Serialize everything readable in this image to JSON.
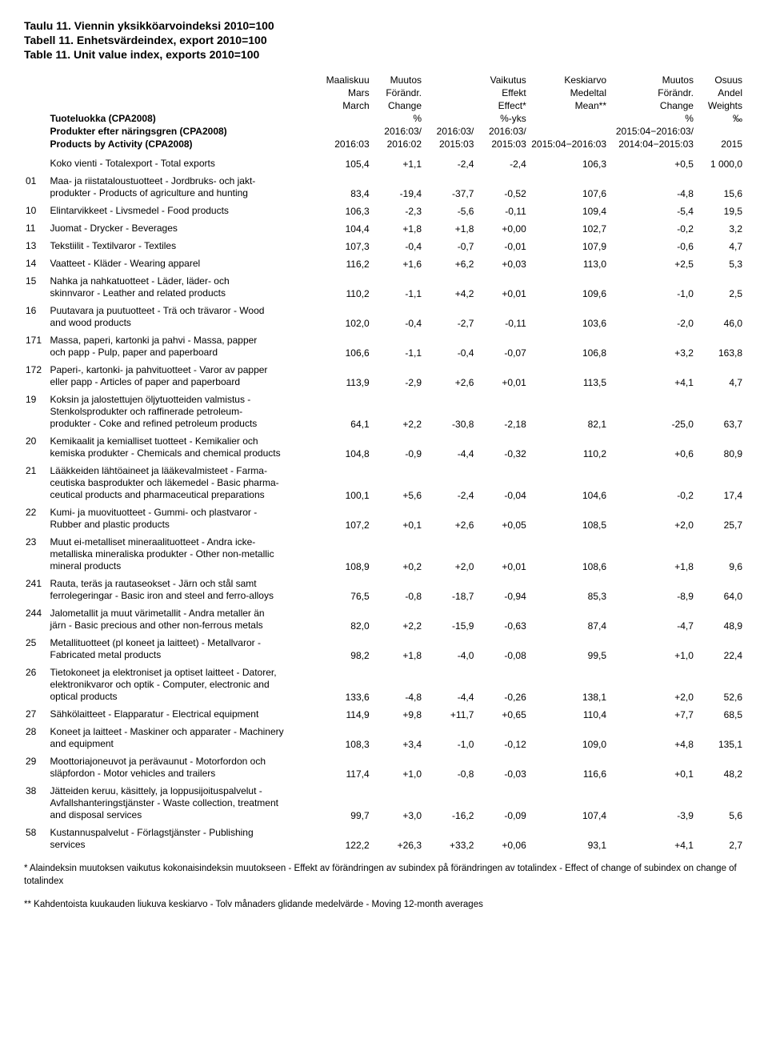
{
  "titles": {
    "fi": "Taulu 11. Viennin yksikköarvoindeksi 2010=100",
    "sv": "Tabell 11. Enhetsvärdeindex, export 2010=100",
    "en": "Table 11. Unit value index, exports 2010=100"
  },
  "header": {
    "row1": [
      "",
      "",
      "Maaliskuu",
      "Muutos",
      "",
      "Vaikutus",
      "Keskiarvo",
      "Muutos",
      "Osuus"
    ],
    "row2": [
      "",
      "",
      "Mars",
      "Förändr.",
      "",
      "Effekt",
      "Medeltal",
      "Förändr.",
      "Andel"
    ],
    "row3": [
      "",
      "",
      "March",
      "Change",
      "",
      "Effect*",
      "Mean**",
      "Change",
      "Weights"
    ],
    "row4": [
      "",
      "Tuoteluokka (CPA2008)",
      "",
      "%",
      "",
      "%-yks",
      "",
      "%",
      "‰"
    ],
    "row5": [
      "",
      "Produkter efter näringsgren (CPA2008)",
      "",
      "2016:03/",
      "2016:03/",
      "2016:03/",
      "",
      "2015:04−2016:03/",
      ""
    ],
    "row6": [
      "",
      "Products by Activity (CPA2008)",
      "2016:03",
      "2016:02",
      "2015:03",
      "2015:03",
      "2015:04−2016:03",
      "2014:04−2015:03",
      "2015"
    ]
  },
  "rows": [
    {
      "code": "",
      "desc": [
        "Koko vienti - Totalexport - Total exports"
      ],
      "v": [
        "105,4",
        "+1,1",
        "-2,4",
        "-2,4",
        "106,3",
        "+0,5",
        "1 000,0"
      ]
    },
    {
      "code": "01",
      "desc": [
        "Maa- ja riistataloustuotteet - Jordbruks- och jakt-",
        "produkter - Products of agriculture and hunting"
      ],
      "v": [
        "83,4",
        "-19,4",
        "-37,7",
        "-0,52",
        "107,6",
        "-4,8",
        "15,6"
      ]
    },
    {
      "code": "10",
      "desc": [
        "Elintarvikkeet - Livsmedel - Food products"
      ],
      "v": [
        "106,3",
        "-2,3",
        "-5,6",
        "-0,11",
        "109,4",
        "-5,4",
        "19,5"
      ]
    },
    {
      "code": "11",
      "desc": [
        "Juomat - Drycker - Beverages"
      ],
      "v": [
        "104,4",
        "+1,8",
        "+1,8",
        "+0,00",
        "102,7",
        "-0,2",
        "3,2"
      ]
    },
    {
      "code": "13",
      "desc": [
        "Tekstiilit  - Textilvaror - Textiles"
      ],
      "v": [
        "107,3",
        "-0,4",
        "-0,7",
        "-0,01",
        "107,9",
        "-0,6",
        "4,7"
      ]
    },
    {
      "code": "14",
      "desc": [
        "Vaatteet - Kläder - Wearing apparel"
      ],
      "v": [
        "116,2",
        "+1,6",
        "+6,2",
        "+0,03",
        "113,0",
        "+2,5",
        "5,3"
      ]
    },
    {
      "code": "15",
      "desc": [
        "Nahka ja nahkatuotteet - Läder, läder- och",
        "skinnvaror - Leather and related products"
      ],
      "v": [
        "110,2",
        "-1,1",
        "+4,2",
        "+0,01",
        "109,6",
        "-1,0",
        "2,5"
      ]
    },
    {
      "code": "16",
      "desc": [
        "Puutavara ja puutuotteet - Trä och trävaror - Wood",
        "and wood products"
      ],
      "v": [
        "102,0",
        "-0,4",
        "-2,7",
        "-0,11",
        "103,6",
        "-2,0",
        "46,0"
      ]
    },
    {
      "code": "171",
      "desc": [
        "Massa, paperi, kartonki ja pahvi - Massa, papper",
        "och papp -  Pulp, paper and paperboard"
      ],
      "v": [
        "106,6",
        "-1,1",
        "-0,4",
        "-0,07",
        "106,8",
        "+3,2",
        "163,8"
      ]
    },
    {
      "code": "172",
      "desc": [
        "Paperi-, kartonki- ja pahvituotteet - Varor av papper",
        "eller papp - Articles of paper and paperboard"
      ],
      "v": [
        "113,9",
        "-2,9",
        "+2,6",
        "+0,01",
        "113,5",
        "+4,1",
        "4,7"
      ]
    },
    {
      "code": "19",
      "desc": [
        "Koksin ja jalostettujen öljytuotteiden valmistus -",
        "Stenkolsprodukter och raffinerade petroleum-",
        "produkter - Coke and refined petroleum products"
      ],
      "v": [
        "64,1",
        "+2,2",
        "-30,8",
        "-2,18",
        "82,1",
        "-25,0",
        "63,7"
      ]
    },
    {
      "code": "20",
      "desc": [
        "Kemikaalit ja kemialliset tuotteet - Kemikalier och",
        "kemiska produkter - Chemicals and chemical products"
      ],
      "v": [
        "104,8",
        "-0,9",
        "-4,4",
        "-0,32",
        "110,2",
        "+0,6",
        "80,9"
      ]
    },
    {
      "code": "21",
      "desc": [
        "Lääkkeiden lähtöaineet ja lääkevalmisteet - Farma-",
        "ceutiska basprodukter och läkemedel - Basic pharma-",
        "ceutical products and pharmaceutical preparations"
      ],
      "v": [
        "100,1",
        "+5,6",
        "-2,4",
        "-0,04",
        "104,6",
        "-0,2",
        "17,4"
      ]
    },
    {
      "code": "22",
      "desc": [
        "Kumi- ja muovituotteet - Gummi- och plastvaror -",
        "Rubber and plastic products"
      ],
      "v": [
        "107,2",
        "+0,1",
        "+2,6",
        "+0,05",
        "108,5",
        "+2,0",
        "25,7"
      ]
    },
    {
      "code": "23",
      "desc": [
        "Muut ei-metalliset mineraalituotteet - Andra icke-",
        "metalliska mineraliska produkter - Other non-metallic",
        "mineral products"
      ],
      "v": [
        "108,9",
        "+0,2",
        "+2,0",
        "+0,01",
        "108,6",
        "+1,8",
        "9,6"
      ]
    },
    {
      "code": "241",
      "desc": [
        "Rauta, teräs ja rautaseokset - Järn och stål samt",
        "ferrolegeringar - Basic iron and steel and ferro-alloys"
      ],
      "v": [
        "76,5",
        "-0,8",
        "-18,7",
        "-0,94",
        "85,3",
        "-8,9",
        "64,0"
      ]
    },
    {
      "code": "244",
      "desc": [
        "Jalometallit ja muut värimetallit - Andra metaller än",
        "järn - Basic precious and other non-ferrous metals"
      ],
      "v": [
        "82,0",
        "+2,2",
        "-15,9",
        "-0,63",
        "87,4",
        "-4,7",
        "48,9"
      ]
    },
    {
      "code": "25",
      "desc": [
        "Metallituotteet (pl koneet ja laitteet) - Metallvaror -",
        "Fabricated metal products"
      ],
      "v": [
        "98,2",
        "+1,8",
        "-4,0",
        "-0,08",
        "99,5",
        "+1,0",
        "22,4"
      ]
    },
    {
      "code": "26",
      "desc": [
        "Tietokoneet ja elektroniset ja optiset laitteet - Datorer,",
        "elektronikvaror och optik - Computer, electronic and",
        "optical products"
      ],
      "v": [
        "133,6",
        "-4,8",
        "-4,4",
        "-0,26",
        "138,1",
        "+2,0",
        "52,6"
      ]
    },
    {
      "code": "27",
      "desc": [
        "Sähkölaitteet - Elapparatur - Electrical equipment"
      ],
      "v": [
        "114,9",
        "+9,8",
        "+11,7",
        "+0,65",
        "110,4",
        "+7,7",
        "68,5"
      ]
    },
    {
      "code": "28",
      "desc": [
        "Koneet ja laitteet - Maskiner och apparater - Machinery",
        "and equipment"
      ],
      "v": [
        "108,3",
        "+3,4",
        "-1,0",
        "-0,12",
        "109,0",
        "+4,8",
        "135,1"
      ]
    },
    {
      "code": "29",
      "desc": [
        "Moottoriajoneuvot ja perävaunut - Motorfordon och",
        "släpfordon - Motor vehicles and trailers"
      ],
      "v": [
        "117,4",
        "+1,0",
        "-0,8",
        "-0,03",
        "116,6",
        "+0,1",
        "48,2"
      ]
    },
    {
      "code": "38",
      "desc": [
        "Jätteiden keruu, käsittely, ja loppusijoituspalvelut -",
        "Avfallshanteringstjänster - Waste collection, treatment",
        "and disposal services"
      ],
      "v": [
        "99,7",
        "+3,0",
        "-16,2",
        "-0,09",
        "107,4",
        "-3,9",
        "5,6"
      ]
    },
    {
      "code": "58",
      "desc": [
        "Kustannuspalvelut - Förlagstjänster - Publishing",
        "services"
      ],
      "v": [
        "122,2",
        "+26,3",
        "+33,2",
        "+0,06",
        "93,1",
        "+4,1",
        "2,7"
      ]
    }
  ],
  "footnotes": {
    "f1": "* Alaindeksin muutoksen vaikutus kokonaisindeksin muutokseen - Effekt av förändringen av subindex på förändringen av totalindex - Effect of change of subindex on change of totalindex",
    "f2": "** Kahdentoista kuukauden liukuva keskiarvo - Tolv månaders glidande medelvärde - Moving 12-month averages"
  }
}
